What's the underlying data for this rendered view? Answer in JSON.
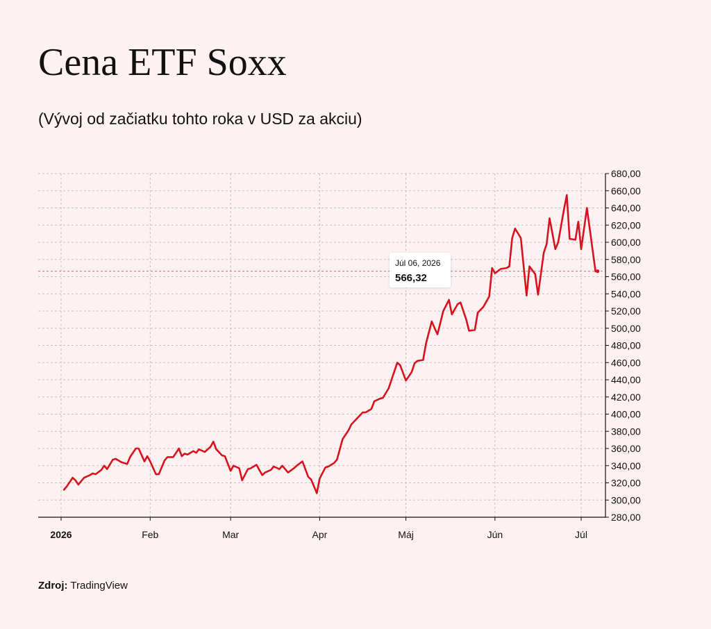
{
  "header": {
    "title": "Cena ETF Soxx",
    "subtitle": "(Vývoj od začiatku tohto roka v USD za akciu)"
  },
  "source": {
    "label": "Zdroj:",
    "value": "TradingView"
  },
  "tooltip": {
    "date": "Júl 06, 2026",
    "value": "566,32"
  },
  "colors": {
    "line": "#d7121e",
    "background": "#fdf1f1",
    "grid": "#c9bdbd",
    "axis": "#111111"
  },
  "chart_data": {
    "type": "line",
    "title": "Cena ETF Soxx",
    "xlabel": "",
    "ylabel": "",
    "ylim": [
      280,
      680
    ],
    "xlim": [
      "2026-01-01",
      "2026-07-07"
    ],
    "grid": true,
    "y_axis_position": "right",
    "yticks": [
      280,
      300,
      320,
      340,
      360,
      380,
      400,
      420,
      440,
      460,
      480,
      500,
      520,
      540,
      560,
      580,
      600,
      620,
      640,
      660,
      680
    ],
    "ytick_labels": [
      "280,00",
      "300,00",
      "320,00",
      "340,00",
      "360,00",
      "380,00",
      "400,00",
      "420,00",
      "440,00",
      "460,00",
      "480,00",
      "500,00",
      "520,00",
      "540,00",
      "560,00",
      "580,00",
      "600,00",
      "620,00",
      "640,00",
      "660,00",
      "680,00"
    ],
    "xticks": [
      {
        "date": "2026-01-01",
        "label": "2026",
        "bold": true
      },
      {
        "date": "2026-02-01",
        "label": "Feb",
        "bold": false
      },
      {
        "date": "2026-03-01",
        "label": "Mar",
        "bold": false
      },
      {
        "date": "2026-04-01",
        "label": "Apr",
        "bold": false
      },
      {
        "date": "2026-05-01",
        "label": "Máj",
        "bold": false
      },
      {
        "date": "2026-06-01",
        "label": "Jún",
        "bold": false
      },
      {
        "date": "2026-07-01",
        "label": "Júl",
        "bold": false
      }
    ],
    "last_point": {
      "date": "2026-07-06",
      "value": 566.32
    },
    "series": [
      {
        "color": "#d7121e",
        "points": [
          [
            "2026-01-02",
            312
          ],
          [
            "2026-01-03",
            316
          ],
          [
            "2026-01-05",
            326
          ],
          [
            "2026-01-06",
            323
          ],
          [
            "2026-01-07",
            318
          ],
          [
            "2026-01-09",
            326
          ],
          [
            "2026-01-11",
            329
          ],
          [
            "2026-01-12",
            331
          ],
          [
            "2026-01-13",
            330
          ],
          [
            "2026-01-15",
            335
          ],
          [
            "2026-01-16",
            340
          ],
          [
            "2026-01-17",
            336
          ],
          [
            "2026-01-19",
            347
          ],
          [
            "2026-01-20",
            348
          ],
          [
            "2026-01-22",
            344
          ],
          [
            "2026-01-24",
            342
          ],
          [
            "2026-01-25",
            350
          ],
          [
            "2026-01-27",
            360
          ],
          [
            "2026-01-28",
            360
          ],
          [
            "2026-01-30",
            345
          ],
          [
            "2026-01-31",
            351
          ],
          [
            "2026-02-01",
            345
          ],
          [
            "2026-02-03",
            330
          ],
          [
            "2026-02-04",
            330
          ],
          [
            "2026-02-06",
            346
          ],
          [
            "2026-02-07",
            350
          ],
          [
            "2026-02-09",
            350
          ],
          [
            "2026-02-11",
            360
          ],
          [
            "2026-02-12",
            351
          ],
          [
            "2026-02-13",
            354
          ],
          [
            "2026-02-14",
            353
          ],
          [
            "2026-02-16",
            357
          ],
          [
            "2026-02-17",
            355
          ],
          [
            "2026-02-18",
            359
          ],
          [
            "2026-02-20",
            356
          ],
          [
            "2026-02-22",
            362
          ],
          [
            "2026-02-23",
            368
          ],
          [
            "2026-02-24",
            359
          ],
          [
            "2026-02-26",
            352
          ],
          [
            "2026-02-27",
            351
          ],
          [
            "2026-03-01",
            334
          ],
          [
            "2026-03-02",
            340
          ],
          [
            "2026-03-04",
            337
          ],
          [
            "2026-03-05",
            323
          ],
          [
            "2026-03-07",
            336
          ],
          [
            "2026-03-08",
            337
          ],
          [
            "2026-03-10",
            341
          ],
          [
            "2026-03-12",
            329
          ],
          [
            "2026-03-13",
            332
          ],
          [
            "2026-03-15",
            335
          ],
          [
            "2026-03-16",
            339
          ],
          [
            "2026-03-18",
            336
          ],
          [
            "2026-03-19",
            340
          ],
          [
            "2026-03-21",
            332
          ],
          [
            "2026-03-23",
            337
          ],
          [
            "2026-03-24",
            340
          ],
          [
            "2026-03-26",
            345
          ],
          [
            "2026-03-28",
            327
          ],
          [
            "2026-03-29",
            324
          ],
          [
            "2026-03-31",
            308
          ],
          [
            "2026-04-01",
            325
          ],
          [
            "2026-04-03",
            338
          ],
          [
            "2026-04-04",
            339
          ],
          [
            "2026-04-06",
            343
          ],
          [
            "2026-04-07",
            347
          ],
          [
            "2026-04-09",
            371
          ],
          [
            "2026-04-11",
            381
          ],
          [
            "2026-04-12",
            388
          ],
          [
            "2026-04-14",
            395
          ],
          [
            "2026-04-16",
            402
          ],
          [
            "2026-04-17",
            402
          ],
          [
            "2026-04-19",
            406
          ],
          [
            "2026-04-20",
            415
          ],
          [
            "2026-04-22",
            418
          ],
          [
            "2026-04-23",
            419
          ],
          [
            "2026-04-25",
            430
          ],
          [
            "2026-04-26",
            440
          ],
          [
            "2026-04-28",
            460
          ],
          [
            "2026-04-29",
            457
          ],
          [
            "2026-05-01",
            439
          ],
          [
            "2026-05-03",
            449
          ],
          [
            "2026-05-04",
            459
          ],
          [
            "2026-05-05",
            462
          ],
          [
            "2026-05-07",
            463
          ],
          [
            "2026-05-08",
            482
          ],
          [
            "2026-05-10",
            508
          ],
          [
            "2026-05-11",
            500
          ],
          [
            "2026-05-12",
            493
          ],
          [
            "2026-05-14",
            520
          ],
          [
            "2026-05-16",
            533
          ],
          [
            "2026-05-17",
            516
          ],
          [
            "2026-05-19",
            528
          ],
          [
            "2026-05-20",
            530
          ],
          [
            "2026-05-22",
            510
          ],
          [
            "2026-05-23",
            497
          ],
          [
            "2026-05-25",
            498
          ],
          [
            "2026-05-26",
            518
          ],
          [
            "2026-05-28",
            525
          ],
          [
            "2026-05-30",
            537
          ],
          [
            "2026-05-31",
            570
          ],
          [
            "2026-06-01",
            564
          ],
          [
            "2026-06-03",
            569
          ],
          [
            "2026-06-05",
            570
          ],
          [
            "2026-06-06",
            572
          ],
          [
            "2026-06-07",
            605
          ],
          [
            "2026-06-08",
            616
          ],
          [
            "2026-06-10",
            605
          ],
          [
            "2026-06-12",
            538
          ],
          [
            "2026-06-13",
            572
          ],
          [
            "2026-06-15",
            563
          ],
          [
            "2026-06-16",
            539
          ],
          [
            "2026-06-18",
            588
          ],
          [
            "2026-06-19",
            598
          ],
          [
            "2026-06-20",
            628
          ],
          [
            "2026-06-22",
            592
          ],
          [
            "2026-06-23",
            600
          ],
          [
            "2026-06-25",
            638
          ],
          [
            "2026-06-26",
            655
          ],
          [
            "2026-06-27",
            604
          ],
          [
            "2026-06-29",
            603
          ],
          [
            "2026-06-30",
            624
          ],
          [
            "2026-07-01",
            592
          ],
          [
            "2026-07-03",
            640
          ],
          [
            "2026-07-06",
            566
          ]
        ]
      }
    ]
  }
}
